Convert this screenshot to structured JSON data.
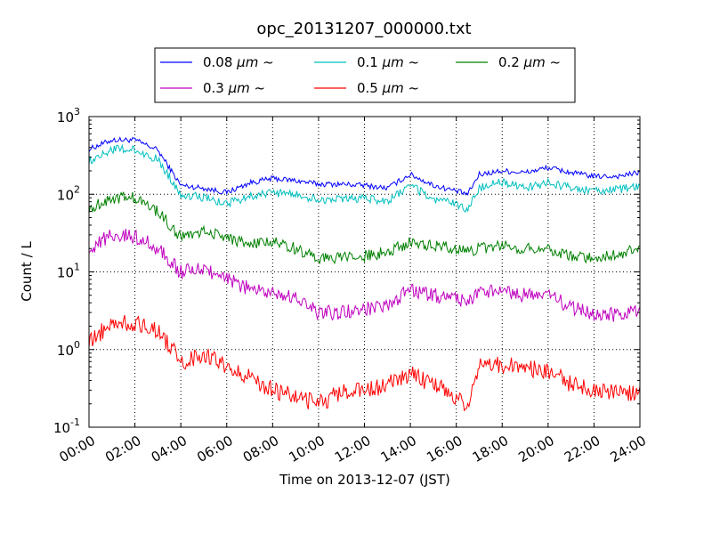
{
  "chart_data": {
    "type": "line",
    "title": "opc_20131207_000000.txt",
    "xlabel": "Time on 2013-12-07 (JST)",
    "ylabel": "Count / L",
    "yscale": "log",
    "ylim": [
      0.1,
      1000
    ],
    "xlim": [
      "00:00",
      "24:00"
    ],
    "x_tick_labels": [
      "00:00",
      "02:00",
      "04:00",
      "06:00",
      "08:00",
      "10:00",
      "12:00",
      "14:00",
      "16:00",
      "18:00",
      "20:00",
      "22:00",
      "24:00"
    ],
    "y_ticks": [
      {
        "base": "10",
        "exp": "-1",
        "value": 0.1
      },
      {
        "base": "10",
        "exp": "0",
        "value": 1
      },
      {
        "base": "10",
        "exp": "1",
        "value": 10
      },
      {
        "base": "10",
        "exp": "2",
        "value": 100
      },
      {
        "base": "10",
        "exp": "3",
        "value": 1000
      }
    ],
    "grid": true,
    "legend_position": "top-center",
    "x": [
      "00:00",
      "01:00",
      "02:00",
      "03:00",
      "04:00",
      "05:00",
      "06:00",
      "07:00",
      "08:00",
      "09:00",
      "10:00",
      "11:00",
      "12:00",
      "13:00",
      "14:00",
      "15:00",
      "16:00",
      "16:30",
      "17:00",
      "18:00",
      "19:00",
      "20:00",
      "21:00",
      "22:00",
      "23:00",
      "24:00"
    ],
    "series": [
      {
        "name_prefix": "0.08 ",
        "name_unit": "μm",
        "name_suffix": " ~",
        "color": "#0000ff",
        "values": [
          380,
          500,
          500,
          370,
          130,
          120,
          105,
          140,
          160,
          150,
          135,
          135,
          130,
          120,
          180,
          130,
          110,
          100,
          180,
          200,
          190,
          220,
          190,
          170,
          170,
          190
        ]
      },
      {
        "name_prefix": "0.1 ",
        "name_unit": "μm",
        "name_suffix": " ~",
        "color": "#00bfbf",
        "values": [
          270,
          380,
          370,
          280,
          100,
          90,
          75,
          95,
          105,
          100,
          85,
          85,
          90,
          80,
          130,
          85,
          75,
          65,
          120,
          145,
          120,
          140,
          120,
          110,
          115,
          125
        ]
      },
      {
        "name_prefix": "0.2 ",
        "name_unit": "μm",
        "name_suffix": " ~",
        "color": "#008000",
        "values": [
          65,
          90,
          90,
          60,
          28,
          34,
          28,
          22,
          25,
          20,
          15,
          15,
          16,
          18,
          24,
          22,
          20,
          18,
          20,
          22,
          20,
          20,
          16,
          15,
          17,
          20
        ]
      },
      {
        "name_prefix": "0.3 ",
        "name_unit": "μm",
        "name_suffix": " ~",
        "color": "#bf00bf",
        "values": [
          20,
          30,
          29,
          20,
          10,
          11,
          8,
          6,
          5.5,
          4.5,
          3,
          3,
          3.3,
          3.5,
          6,
          5,
          4.5,
          4,
          5.5,
          5.5,
          5,
          5,
          3.5,
          2.8,
          2.8,
          3.1
        ]
      },
      {
        "name_prefix": "0.5 ",
        "name_unit": "μm",
        "name_suffix": " ~",
        "color": "#ff0000",
        "values": [
          1.2,
          2.2,
          2.2,
          1.8,
          0.7,
          0.85,
          0.6,
          0.45,
          0.3,
          0.25,
          0.2,
          0.28,
          0.3,
          0.35,
          0.5,
          0.35,
          0.25,
          0.2,
          0.6,
          0.65,
          0.55,
          0.55,
          0.35,
          0.3,
          0.28,
          0.27
        ]
      }
    ]
  }
}
